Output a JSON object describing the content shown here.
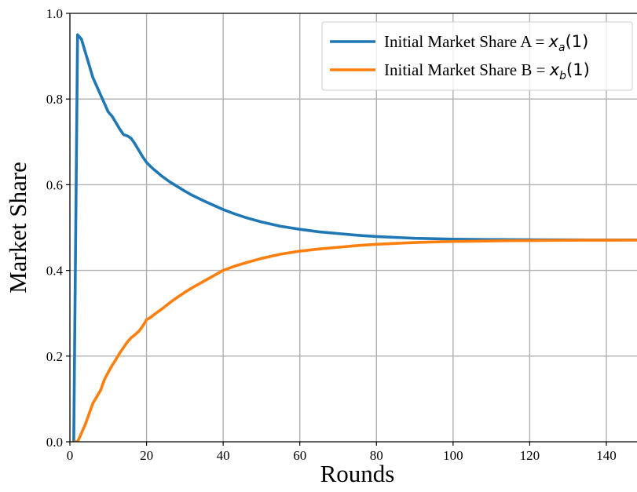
{
  "chart_data": {
    "type": "line",
    "title": "",
    "xlabel": "Rounds",
    "ylabel": "Market Share",
    "xlim": [
      0,
      148
    ],
    "ylim": [
      0.0,
      1.0
    ],
    "x_ticks": [
      0,
      20,
      40,
      60,
      80,
      100,
      120,
      140
    ],
    "y_ticks": [
      0.0,
      0.2,
      0.4,
      0.6,
      0.8,
      1.0
    ],
    "x_tick_labels": [
      "0",
      "20",
      "40",
      "60",
      "80",
      "100",
      "120",
      "140"
    ],
    "y_tick_labels": [
      "0.0",
      "0.2",
      "0.4",
      "0.6",
      "0.8",
      "1.0"
    ],
    "grid": true,
    "legend_position": "top-right",
    "series": [
      {
        "name_text": "Initial Market Share A = ",
        "name_math_base": "x",
        "name_math_sub": "a",
        "name_math_arg": "(1)",
        "color": "#1f77b4",
        "x": [
          1,
          2,
          3,
          4,
          5,
          6,
          7,
          8,
          9,
          10,
          11,
          12,
          13,
          14,
          15,
          16,
          17,
          18,
          19,
          20,
          21,
          22,
          24,
          26,
          28,
          30,
          32,
          35,
          38,
          40,
          43,
          46,
          50,
          55,
          60,
          65,
          70,
          75,
          80,
          85,
          90,
          95,
          100,
          105,
          110,
          115,
          120,
          125,
          130,
          135,
          140,
          145,
          148
        ],
        "y": [
          0.0,
          0.95,
          0.94,
          0.91,
          0.88,
          0.85,
          0.83,
          0.81,
          0.79,
          0.77,
          0.76,
          0.745,
          0.73,
          0.717,
          0.714,
          0.708,
          0.695,
          0.68,
          0.665,
          0.652,
          0.643,
          0.635,
          0.62,
          0.607,
          0.596,
          0.585,
          0.575,
          0.562,
          0.55,
          0.542,
          0.532,
          0.523,
          0.513,
          0.503,
          0.496,
          0.49,
          0.486,
          0.482,
          0.479,
          0.477,
          0.475,
          0.474,
          0.473,
          0.4725,
          0.472,
          0.4718,
          0.4715,
          0.4713,
          0.4712,
          0.4711,
          0.471,
          0.471,
          0.471
        ]
      },
      {
        "name_text": "Initial Market Share B = ",
        "name_math_base": "x",
        "name_math_sub": "b",
        "name_math_arg": "(1)",
        "color": "#ff7f0e",
        "x": [
          1,
          2,
          3,
          4,
          5,
          6,
          7,
          8,
          9,
          10,
          11,
          12,
          13,
          14,
          15,
          16,
          17,
          18,
          19,
          20,
          21,
          22,
          24,
          26,
          28,
          30,
          32,
          35,
          38,
          40,
          43,
          46,
          50,
          55,
          60,
          65,
          70,
          75,
          80,
          85,
          90,
          95,
          100,
          105,
          110,
          115,
          120,
          125,
          130,
          135,
          140,
          145,
          148
        ],
        "y": [
          0.0,
          0.0,
          0.02,
          0.04,
          0.065,
          0.09,
          0.105,
          0.12,
          0.145,
          0.162,
          0.178,
          0.192,
          0.207,
          0.22,
          0.233,
          0.243,
          0.25,
          0.258,
          0.27,
          0.285,
          0.29,
          0.297,
          0.31,
          0.324,
          0.337,
          0.349,
          0.36,
          0.375,
          0.39,
          0.4,
          0.41,
          0.418,
          0.428,
          0.438,
          0.445,
          0.45,
          0.454,
          0.458,
          0.461,
          0.463,
          0.465,
          0.4665,
          0.4675,
          0.468,
          0.4688,
          0.4693,
          0.4697,
          0.47,
          0.4703,
          0.4705,
          0.4706,
          0.4707,
          0.4707
        ]
      }
    ]
  }
}
